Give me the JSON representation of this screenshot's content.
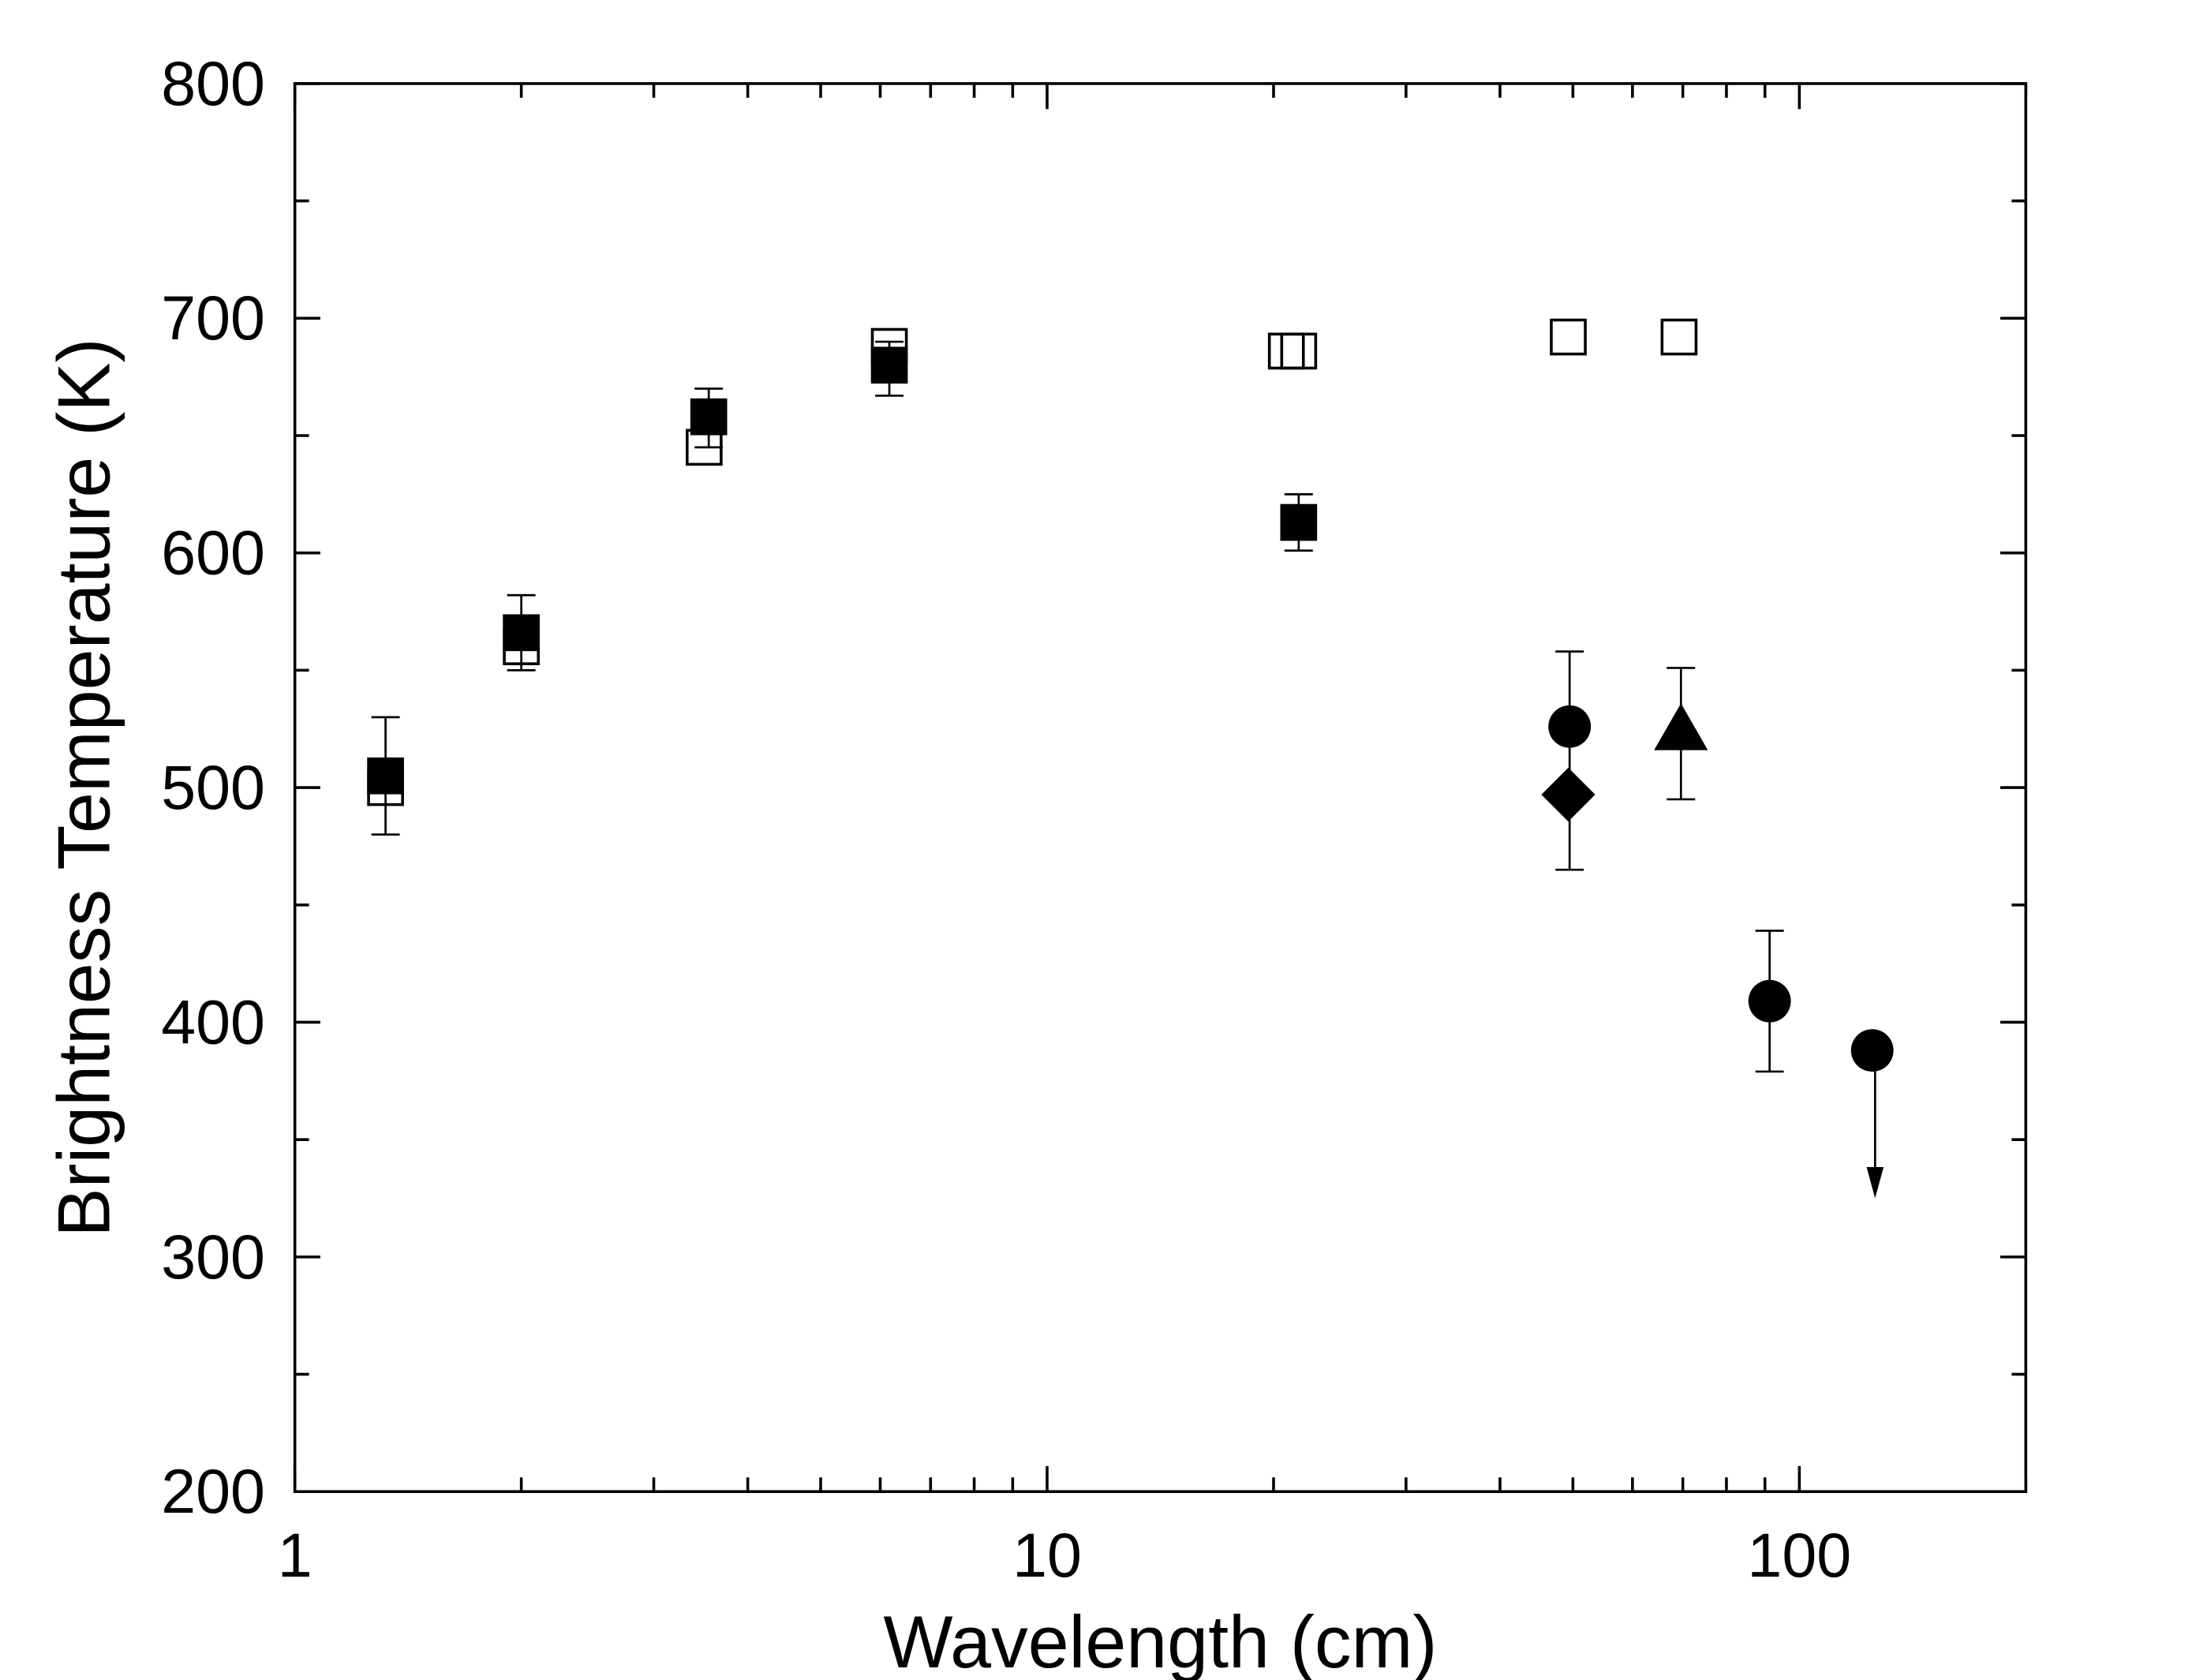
{
  "chart_data": {
    "type": "scatter",
    "title": "",
    "xlabel": "Wavelength (cm)",
    "ylabel": "Brightness Temperature (K)",
    "xscale": "log",
    "xlim": [
      1,
      200
    ],
    "ylim": [
      200,
      800
    ],
    "xticks": [
      1,
      10,
      100
    ],
    "xtick_labels": [
      "1",
      "10",
      "100"
    ],
    "yticks": [
      200,
      300,
      400,
      500,
      600,
      700,
      800
    ],
    "ytick_labels": [
      "200",
      "300",
      "400",
      "500",
      "600",
      "700",
      "800"
    ],
    "grid": false,
    "legend": "none",
    "series": [
      {
        "marker": "filled-square",
        "points": [
          {
            "x": 1.32,
            "y": 505,
            "err": [
              480,
              530
            ]
          },
          {
            "x": 2.0,
            "y": 566,
            "err": [
              550,
              582
            ]
          },
          {
            "x": 3.55,
            "y": 658,
            "err": [
              645,
              670
            ]
          },
          {
            "x": 6.17,
            "y": 680,
            "err": [
              667,
              690
            ]
          },
          {
            "x": 21.6,
            "y": 613,
            "err": [
              601,
              625
            ]
          }
        ]
      },
      {
        "marker": "open-square",
        "points": [
          {
            "x": 1.32,
            "y": 500
          },
          {
            "x": 2.0,
            "y": 560
          },
          {
            "x": 3.5,
            "y": 645
          },
          {
            "x": 6.17,
            "y": 688
          },
          {
            "x": 20.8,
            "y": 686
          },
          {
            "x": 21.6,
            "y": 686
          },
          {
            "x": 49.3,
            "y": 692
          },
          {
            "x": 69.2,
            "y": 692
          }
        ]
      },
      {
        "marker": "filled-circle",
        "points": [
          {
            "x": 49.5,
            "y": 526,
            "err": [
              465,
              558
            ]
          },
          {
            "x": 91.3,
            "y": 409,
            "err": [
              379,
              439
            ]
          },
          {
            "x": 125,
            "y": 388,
            "upper_limit_arrow_to": 325
          }
        ]
      },
      {
        "marker": "filled-diamond",
        "points": [
          {
            "x": 49.3,
            "y": 497
          }
        ]
      },
      {
        "marker": "filled-triangle",
        "points": [
          {
            "x": 69.6,
            "y": 525,
            "err": [
              495,
              551
            ]
          }
        ]
      }
    ]
  }
}
